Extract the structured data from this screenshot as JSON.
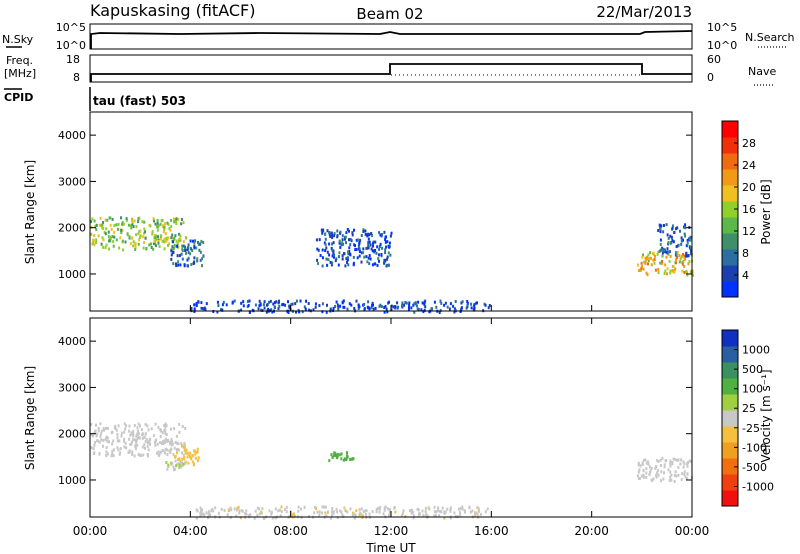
{
  "header": {
    "station": "Kapuskasing (fitACF)",
    "beam": "Beam 02",
    "date": "22/Mar/2013"
  },
  "strips": {
    "nsky_label": "N.Sky",
    "nsky_ticks": [
      "10^5",
      "10^0"
    ],
    "nsearch_label": "N.Search",
    "nsearch_ticks": [
      "10^5",
      "10^0"
    ],
    "freq_label_1": "Freq.",
    "freq_label_2": "[MHz]",
    "freq_ticks": [
      "18",
      "8"
    ],
    "nave_label": "Nave",
    "nave_ticks": [
      "60",
      "0"
    ],
    "cpid_label": "CPID",
    "cpid_text": "tau (fast) 503"
  },
  "colors": {
    "power": [
      "#0033ff",
      "#1c3fb0",
      "#2a6fa0",
      "#3e8f6a",
      "#5cb84a",
      "#8fd12a",
      "#f0c020",
      "#f09a18",
      "#f06a10",
      "#f03008",
      "#ff0000"
    ],
    "velocity": [
      "#f01010",
      "#f04010",
      "#f07010",
      "#f0a020",
      "#f5c040",
      "#c8c8c8",
      "#a0d040",
      "#50b040",
      "#3a9060",
      "#2a60a0",
      "#1030c0"
    ],
    "ground_scatter": "#c0c0c0"
  },
  "chart_data": [
    {
      "type": "heatmap",
      "panel": "power",
      "ylabel": "Slant Range [km]",
      "xlim": [
        "00:00",
        "24:00"
      ],
      "ylim": [
        200,
        4500
      ],
      "yticks": [
        "1000",
        "2000",
        "3000",
        "4000"
      ],
      "colorbar": {
        "label": "Power [dB]",
        "ticks": [
          "4",
          "8",
          "12",
          "16",
          "20",
          "24",
          "28"
        ],
        "range": [
          0,
          30
        ]
      },
      "regions": [
        {
          "t0": 0.0,
          "t1": 3.8,
          "r0": 1550,
          "r1": 2250,
          "value": 14
        },
        {
          "t0": 3.2,
          "t1": 4.5,
          "r0": 1200,
          "r1": 1750,
          "value": 6
        },
        {
          "t0": 21.8,
          "t1": 24.0,
          "r0": 1000,
          "r1": 1500,
          "value": 18
        },
        {
          "t0": 22.6,
          "t1": 24.0,
          "r0": 1400,
          "r1": 2100,
          "value": 5
        },
        {
          "t0": 9.0,
          "t1": 12.0,
          "r0": 1200,
          "r1": 2000,
          "value": 4
        },
        {
          "t0": 4.0,
          "t1": 16.0,
          "r0": 200,
          "r1": 450,
          "value": 3
        }
      ]
    },
    {
      "type": "heatmap",
      "panel": "velocity",
      "ylabel": "Slant Range [km]",
      "xlabel": "Time UT",
      "xlim": [
        "00:00",
        "24:00"
      ],
      "xticks": [
        "00:00",
        "04:00",
        "08:00",
        "12:00",
        "16:00",
        "20:00",
        "00:00"
      ],
      "ylim": [
        200,
        4500
      ],
      "yticks": [
        "1000",
        "2000",
        "3000",
        "4000"
      ],
      "colorbar": {
        "label": "Velocity [m s⁻¹]",
        "ticks": [
          "1000",
          "500",
          "100",
          "25",
          "-25",
          "-100",
          "-500",
          "-1000"
        ],
        "range": [
          -1200,
          1200
        ]
      },
      "regions": [
        {
          "t0": 0.0,
          "t1": 3.8,
          "r0": 1550,
          "r1": 2250,
          "value": 0
        },
        {
          "t0": 3.3,
          "t1": 4.3,
          "r0": 1350,
          "r1": 1800,
          "value": -250
        },
        {
          "t0": 3.0,
          "t1": 3.8,
          "r0": 1250,
          "r1": 1450,
          "value": 90
        },
        {
          "t0": 21.8,
          "t1": 24.0,
          "r0": 1000,
          "r1": 1500,
          "value": 0
        },
        {
          "t0": 9.5,
          "t1": 10.5,
          "r0": 1450,
          "r1": 1650,
          "value": 400
        },
        {
          "t0": 4.0,
          "t1": 16.0,
          "r0": 200,
          "r1": 450,
          "value": -60
        }
      ]
    }
  ]
}
